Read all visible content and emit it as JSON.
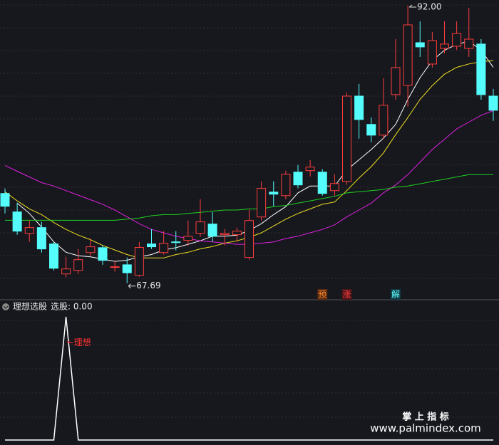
{
  "chart_data": [
    {
      "type": "candlestick",
      "ylim": [
        66.3,
        92.5
      ],
      "up_color": "#ff3c3c",
      "down_color": "#54fcfc",
      "open": [
        75.55,
        73.93,
        72.06,
        72.56,
        71.13,
        68.5,
        68.81,
        70.37,
        70.8,
        69.07,
        69.3,
        68.38,
        71.13,
        70.37,
        71.31,
        71.44,
        72.06,
        72.87,
        71.94,
        71.94,
        69.94,
        73.49,
        75.67,
        75.36,
        77.42,
        77.55,
        77.42,
        75.8,
        76.61,
        84.08,
        81.6,
        80.66,
        84.21,
        85.02,
        88.76,
        86.89,
        88.26,
        88.45,
        88.26,
        88.64,
        84.08
      ],
      "high": [
        75.99,
        74.74,
        73.18,
        73.06,
        71.3,
        70.0,
        70.69,
        71.6,
        71.0,
        69.6,
        69.94,
        71.3,
        72.43,
        72.25,
        72.25,
        73.18,
        75.05,
        73.93,
        72.43,
        72.56,
        74.12,
        76.61,
        76.61,
        77.55,
        78.04,
        78.48,
        77.67,
        77.23,
        84.4,
        85.15,
        82.22,
        85.64,
        89.07,
        92.0,
        90.63,
        89.69,
        90.63,
        90.63,
        91.8,
        89.07,
        84.71
      ],
      "low": [
        73.8,
        71.93,
        71.31,
        70.37,
        68.81,
        68.2,
        68.5,
        70.07,
        69.3,
        68.7,
        67.69,
        68.25,
        70.69,
        70.2,
        70.56,
        71.0,
        71.75,
        71.31,
        71.0,
        71.31,
        69.75,
        73.18,
        74.43,
        75.05,
        75.99,
        77.04,
        75.36,
        75.36,
        76.3,
        80.35,
        80.04,
        80.35,
        83.77,
        83.15,
        87.51,
        86.58,
        87.82,
        88.14,
        87.51,
        83.77,
        81.91
      ],
      "close": [
        74.43,
        72.25,
        72.56,
        70.69,
        69.0,
        68.94,
        69.75,
        70.88,
        69.69,
        69.13,
        68.6,
        70.82,
        70.88,
        71.19,
        71.25,
        71.8,
        73.06,
        71.8,
        72.06,
        72.25,
        73.18,
        75.99,
        75.49,
        77.23,
        76.3,
        77.86,
        75.55,
        76.42,
        84.08,
        82.03,
        80.66,
        83.28,
        86.58,
        90.32,
        88.39,
        88.95,
        88.64,
        89.57,
        89.07,
        84.21,
        82.84
      ],
      "series": [
        {
          "color": "#ffffff",
          "values": [
            null,
            74.7,
            73.8,
            72.6,
            71.3,
            70.4,
            70.1,
            70.0,
            69.8,
            69.6,
            69.7,
            70.0,
            70.2,
            70.6,
            70.8,
            71.1,
            71.4,
            71.8,
            71.8,
            71.9,
            72.3,
            72.9,
            73.7,
            74.4,
            75.6,
            76.2,
            76.2,
            76.2,
            77.6,
            78.5,
            79.4,
            80.4,
            81.6,
            83.8,
            85.7,
            87.2,
            88.1,
            88.6,
            88.9,
            88.1,
            86.6
          ]
        },
        {
          "color": "#f0e020",
          "values": [
            75.7,
            74.9,
            74.2,
            73.7,
            73.0,
            72.4,
            71.9,
            71.5,
            71.0,
            70.6,
            70.2,
            69.9,
            69.9,
            69.9,
            70.2,
            70.4,
            70.7,
            70.9,
            71.2,
            71.4,
            71.7,
            72.1,
            72.7,
            73.3,
            73.8,
            74.2,
            74.6,
            74.8,
            75.8,
            76.9,
            77.9,
            79.1,
            80.7,
            82.2,
            83.8,
            85.0,
            86.0,
            86.6,
            86.9,
            87.1,
            87.2
          ]
        },
        {
          "color": "#e020e0",
          "values": [
            78.0,
            77.5,
            77.0,
            76.5,
            76.2,
            75.8,
            75.4,
            75.0,
            74.6,
            74.1,
            73.5,
            72.9,
            72.4,
            72.1,
            71.8,
            71.6,
            71.4,
            71.3,
            71.2,
            71.1,
            71.1,
            71.2,
            71.3,
            71.6,
            71.8,
            72.1,
            72.4,
            72.8,
            73.5,
            74.1,
            74.7,
            75.6,
            76.3,
            77.2,
            78.3,
            79.4,
            80.3,
            81.2,
            81.8,
            82.4,
            82.8
          ]
        },
        {
          "color": "#20d020",
          "values": [
            73.2,
            73.2,
            73.2,
            73.2,
            73.2,
            73.2,
            73.2,
            73.2,
            73.2,
            73.2,
            73.3,
            73.4,
            73.6,
            73.7,
            73.7,
            73.8,
            73.9,
            74.0,
            74.1,
            74.1,
            74.2,
            74.2,
            74.4,
            74.5,
            74.7,
            74.9,
            75.1,
            75.3,
            75.6,
            75.7,
            75.8,
            75.9,
            76.1,
            76.2,
            76.4,
            76.6,
            76.8,
            77.0,
            77.2,
            77.2,
            77.2
          ]
        }
      ],
      "annotations": [
        {
          "text": "92.00",
          "index": 33,
          "at": "high"
        },
        {
          "text": "67.69",
          "index": 10,
          "at": "low"
        }
      ],
      "signals": [
        {
          "text": "预",
          "index": 26,
          "color": "#ff8a30",
          "bg": "#5a2a10"
        },
        {
          "text": "涨",
          "index": 28,
          "color": "#ff4040",
          "bg": "#4a1418"
        },
        {
          "text": "解",
          "index": 32,
          "color": "#60ffff",
          "bg": "#103a44"
        }
      ]
    },
    {
      "type": "line",
      "title": "理想选股",
      "status": "选股: 0.00",
      "color": "#ffffff",
      "ylim": [
        0,
        1
      ],
      "values": [
        0,
        0,
        0,
        0,
        0,
        1,
        0,
        0,
        0,
        0,
        0,
        0,
        0,
        0,
        0,
        0,
        0,
        0,
        0,
        0,
        0,
        0,
        0,
        0,
        0,
        0,
        0,
        0,
        0,
        0,
        0,
        0,
        0,
        0,
        0,
        0,
        0,
        0,
        0,
        0,
        0
      ],
      "annotation": {
        "text": "理想",
        "index": 5,
        "color": "#ff3030"
      }
    },
    {
      "type": "watermark",
      "line1": "掌 上 指 标",
      "line2": "www.palmindex.com"
    }
  ]
}
